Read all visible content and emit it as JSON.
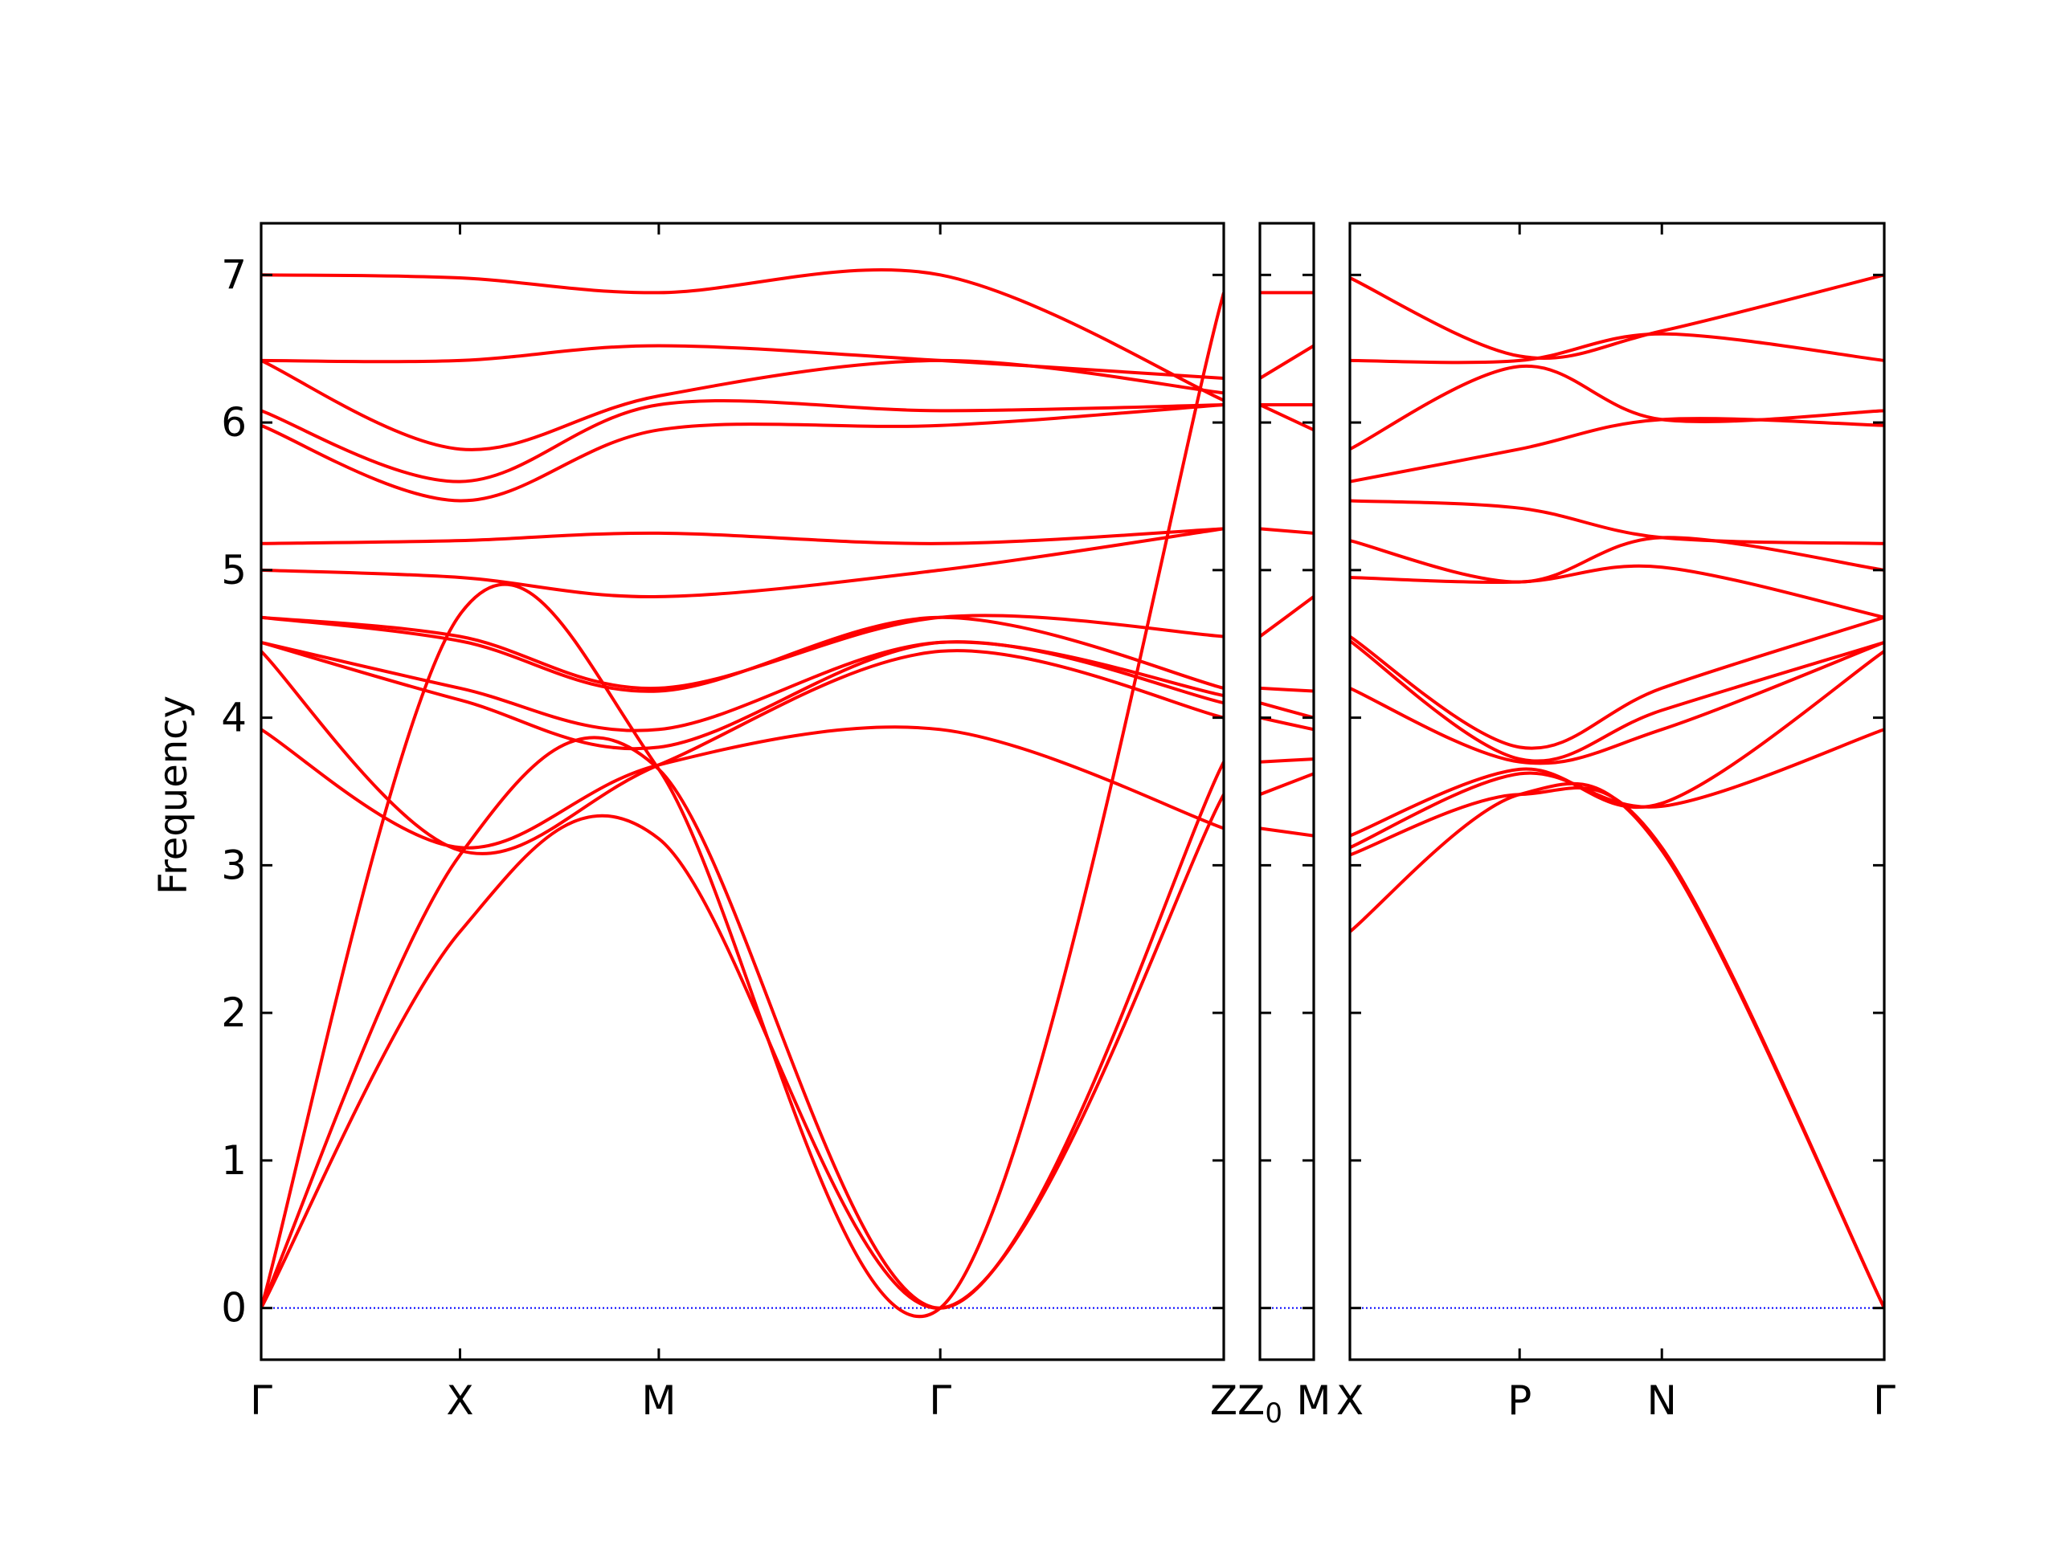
{
  "chart_data": {
    "type": "line",
    "title": "",
    "ylabel": "Frequency",
    "ylim": [
      -0.35,
      7.35
    ],
    "yticks": [
      "0",
      "1",
      "2",
      "3",
      "4",
      "5",
      "6",
      "7"
    ],
    "line_color": "#ff0000",
    "zero_line_color": "#0000ff",
    "grid": false,
    "panels": [
      {
        "id": "panel-1",
        "xticks": [
          {
            "pos": 0.0,
            "label": "Γ"
          },
          {
            "pos": 0.2066,
            "label": "X"
          },
          {
            "pos": 0.4131,
            "label": "M"
          },
          {
            "pos": 0.7055,
            "label": "Γ"
          },
          {
            "pos": 1.0,
            "label": "Z"
          }
        ],
        "series": [
          {
            "x": [
              0,
              0.2066,
              0.4131,
              0.7055,
              1.0
            ],
            "y": [
              0,
              2.55,
              3.18,
              0,
              3.48
            ]
          },
          {
            "x": [
              0,
              0.2066,
              0.4131,
              0.7055,
              1.0
            ],
            "y": [
              0,
              3.07,
              3.65,
              0,
              3.7
            ]
          },
          {
            "x": [
              0,
              0.2066,
              0.4131,
              0.7055,
              1.0
            ],
            "y": [
              0,
              4.7,
              3.65,
              0,
              6.88
            ]
          },
          {
            "x": [
              0,
              0.2066,
              0.4131,
              0.7055,
              1.0
            ],
            "y": [
              3.92,
              3.12,
              3.68,
              3.92,
              3.25
            ]
          },
          {
            "x": [
              0,
              0.2066,
              0.4131,
              0.7055,
              1.0
            ],
            "y": [
              4.45,
              3.1,
              3.68,
              4.45,
              4.0
            ]
          },
          {
            "x": [
              0,
              0.2066,
              0.4131,
              0.7055,
              1.0
            ],
            "y": [
              4.51,
              4.12,
              3.8,
              4.51,
              4.1
            ]
          },
          {
            "x": [
              0,
              0.2066,
              0.4131,
              0.7055,
              1.0
            ],
            "y": [
              4.51,
              4.2,
              3.92,
              4.51,
              4.15
            ]
          },
          {
            "x": [
              0,
              0.2066,
              0.4131,
              0.7055,
              1.0
            ],
            "y": [
              4.68,
              4.52,
              4.18,
              4.68,
              4.2
            ]
          },
          {
            "x": [
              0,
              0.2066,
              0.4131,
              0.7055,
              1.0
            ],
            "y": [
              4.68,
              4.55,
              4.2,
              4.68,
              4.55
            ]
          },
          {
            "x": [
              0,
              0.2066,
              0.4131,
              0.7055,
              1.0
            ],
            "y": [
              5.0,
              4.95,
              4.82,
              5.0,
              5.28
            ]
          },
          {
            "x": [
              0,
              0.2066,
              0.4131,
              0.7055,
              1.0
            ],
            "y": [
              5.18,
              5.2,
              5.25,
              5.18,
              5.28
            ]
          },
          {
            "x": [
              0,
              0.2066,
              0.4131,
              0.7055,
              1.0
            ],
            "y": [
              5.98,
              5.47,
              5.95,
              5.98,
              6.12
            ]
          },
          {
            "x": [
              0,
              0.2066,
              0.4131,
              0.7055,
              1.0
            ],
            "y": [
              6.08,
              5.6,
              6.12,
              6.08,
              6.12
            ]
          },
          {
            "x": [
              0,
              0.2066,
              0.4131,
              0.7055,
              1.0
            ],
            "y": [
              6.42,
              5.82,
              6.18,
              6.42,
              6.2
            ]
          },
          {
            "x": [
              0,
              0.2066,
              0.4131,
              0.7055,
              1.0
            ],
            "y": [
              6.42,
              6.42,
              6.52,
              6.42,
              6.3
            ]
          },
          {
            "x": [
              0,
              0.2066,
              0.4131,
              0.7055,
              1.0
            ],
            "y": [
              7.0,
              6.98,
              6.88,
              7.0,
              6.15
            ]
          }
        ]
      },
      {
        "id": "panel-2",
        "xticks": [
          {
            "pos": 0.0,
            "label": "Z₀"
          },
          {
            "pos": 1.0,
            "label": "M"
          }
        ],
        "series": [
          {
            "x": [
              0,
              1
            ],
            "y": [
              3.48,
              3.62
            ]
          },
          {
            "x": [
              0,
              1
            ],
            "y": [
              3.7,
              3.72
            ]
          },
          {
            "x": [
              0,
              1
            ],
            "y": [
              3.25,
              3.2
            ]
          },
          {
            "x": [
              0,
              1
            ],
            "y": [
              4.0,
              3.92
            ]
          },
          {
            "x": [
              0,
              1
            ],
            "y": [
              4.1,
              4.0
            ]
          },
          {
            "x": [
              0,
              1
            ],
            "y": [
              4.2,
              4.18
            ]
          },
          {
            "x": [
              0,
              1
            ],
            "y": [
              4.55,
              4.82
            ]
          },
          {
            "x": [
              0,
              1
            ],
            "y": [
              5.28,
              5.25
            ]
          },
          {
            "x": [
              0,
              1
            ],
            "y": [
              6.12,
              5.95
            ]
          },
          {
            "x": [
              0,
              1
            ],
            "y": [
              6.12,
              6.12
            ]
          },
          {
            "x": [
              0,
              1
            ],
            "y": [
              6.3,
              6.52
            ]
          },
          {
            "x": [
              0,
              1
            ],
            "y": [
              6.88,
              6.88
            ]
          }
        ]
      },
      {
        "id": "panel-3",
        "xticks": [
          {
            "pos": 0.0,
            "label": "X"
          },
          {
            "pos": 0.3176,
            "label": "P"
          },
          {
            "pos": 0.5838,
            "label": "N"
          },
          {
            "pos": 1.0,
            "label": "Γ"
          }
        ],
        "series": [
          {
            "x": [
              0,
              0.3176,
              0.5838,
              1.0
            ],
            "y": [
              2.55,
              3.48,
              3.1,
              0
            ]
          },
          {
            "x": [
              0,
              0.3176,
              0.5838,
              1.0
            ],
            "y": [
              3.07,
              3.48,
              3.12,
              0
            ]
          },
          {
            "x": [
              0,
              0.3176,
              0.5838,
              1.0
            ],
            "y": [
              3.12,
              3.62,
              3.4,
              3.92
            ]
          },
          {
            "x": [
              0,
              0.3176,
              0.5838,
              1.0
            ],
            "y": [
              3.2,
              3.65,
              3.42,
              4.45
            ]
          },
          {
            "x": [
              0,
              0.3176,
              0.5838,
              1.0
            ],
            "y": [
              4.2,
              3.7,
              3.92,
              4.51
            ]
          },
          {
            "x": [
              0,
              0.3176,
              0.5838,
              1.0
            ],
            "y": [
              4.52,
              3.72,
              4.05,
              4.51
            ]
          },
          {
            "x": [
              0,
              0.3176,
              0.5838,
              1.0
            ],
            "y": [
              4.55,
              3.8,
              4.2,
              4.68
            ]
          },
          {
            "x": [
              0,
              0.3176,
              0.5838,
              1.0
            ],
            "y": [
              4.95,
              4.92,
              5.02,
              4.68
            ]
          },
          {
            "x": [
              0,
              0.3176,
              0.5838,
              1.0
            ],
            "y": [
              5.2,
              4.92,
              5.22,
              5.0
            ]
          },
          {
            "x": [
              0,
              0.3176,
              0.5838,
              1.0
            ],
            "y": [
              5.47,
              5.42,
              5.22,
              5.18
            ]
          },
          {
            "x": [
              0,
              0.3176,
              0.5838,
              1.0
            ],
            "y": [
              5.6,
              5.82,
              6.02,
              5.98
            ]
          },
          {
            "x": [
              0,
              0.3176,
              0.5838,
              1.0
            ],
            "y": [
              5.82,
              6.38,
              6.02,
              6.08
            ]
          },
          {
            "x": [
              0,
              0.3176,
              0.5838,
              1.0
            ],
            "y": [
              6.42,
              6.42,
              6.6,
              6.42
            ]
          },
          {
            "x": [
              0,
              0.3176,
              0.5838,
              1.0
            ],
            "y": [
              6.98,
              6.45,
              6.62,
              7.0
            ]
          }
        ]
      }
    ]
  }
}
